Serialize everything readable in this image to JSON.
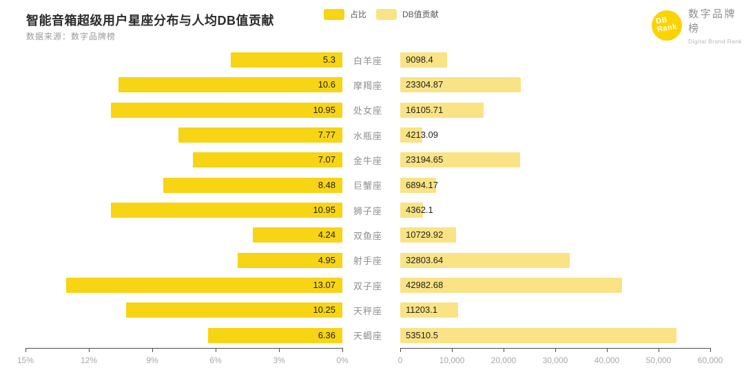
{
  "header": {
    "title": "智能音箱超级用户星座分布与人均DB值贡献",
    "source": "数据来源：数字品牌榜"
  },
  "legend": [
    {
      "label": "占比",
      "color": "#F7D414"
    },
    {
      "label": "DB值贡献",
      "color": "#F9E385"
    }
  ],
  "logo": {
    "circle_line1": "DB",
    "circle_line2": "Rank",
    "name_cn": "数字品牌榜",
    "name_en": "Digital Brand Rank",
    "circle_color": "#FBD400"
  },
  "colors": {
    "ratio_bar": "#F7D414",
    "db_bar": "#F9E385",
    "axis": "#4a4a4a",
    "tick_label": "#a8a8a8"
  },
  "chart_data": {
    "type": "bar",
    "layout": "bidirectional-horizontal",
    "title": "智能音箱超级用户星座分布与人均DB值贡献",
    "categories": [
      "白羊座",
      "摩羯座",
      "处女座",
      "水瓶座",
      "金牛座",
      "巨蟹座",
      "狮子座",
      "双鱼座",
      "射手座",
      "双子座",
      "天秤座",
      "天蝎座"
    ],
    "series": [
      {
        "name": "占比",
        "unit": "%",
        "direction": "right-to-left",
        "axis_min": 0,
        "axis_max": 15,
        "color": "#F7D414",
        "values": [
          5.3,
          10.6,
          10.95,
          7.77,
          7.07,
          8.48,
          10.95,
          4.24,
          4.95,
          13.07,
          10.25,
          6.36
        ]
      },
      {
        "name": "DB值贡献",
        "unit": "",
        "direction": "left-to-right",
        "axis_min": 0,
        "axis_max": 60000,
        "color": "#F9E385",
        "values": [
          9098.4,
          23304.87,
          16105.71,
          4213.09,
          23194.65,
          6894.17,
          4362.1,
          10729.92,
          32803.64,
          42982.68,
          11203.1,
          53510.5
        ]
      }
    ],
    "left_axis_ticks": [
      "15%",
      "12%",
      "9%",
      "6%",
      "3%",
      "0%"
    ],
    "right_axis_ticks": [
      "0",
      "10,000",
      "20,000",
      "30,000",
      "40,000",
      "50,000",
      "60,000"
    ],
    "grid": false,
    "legend_position": "top-center"
  }
}
